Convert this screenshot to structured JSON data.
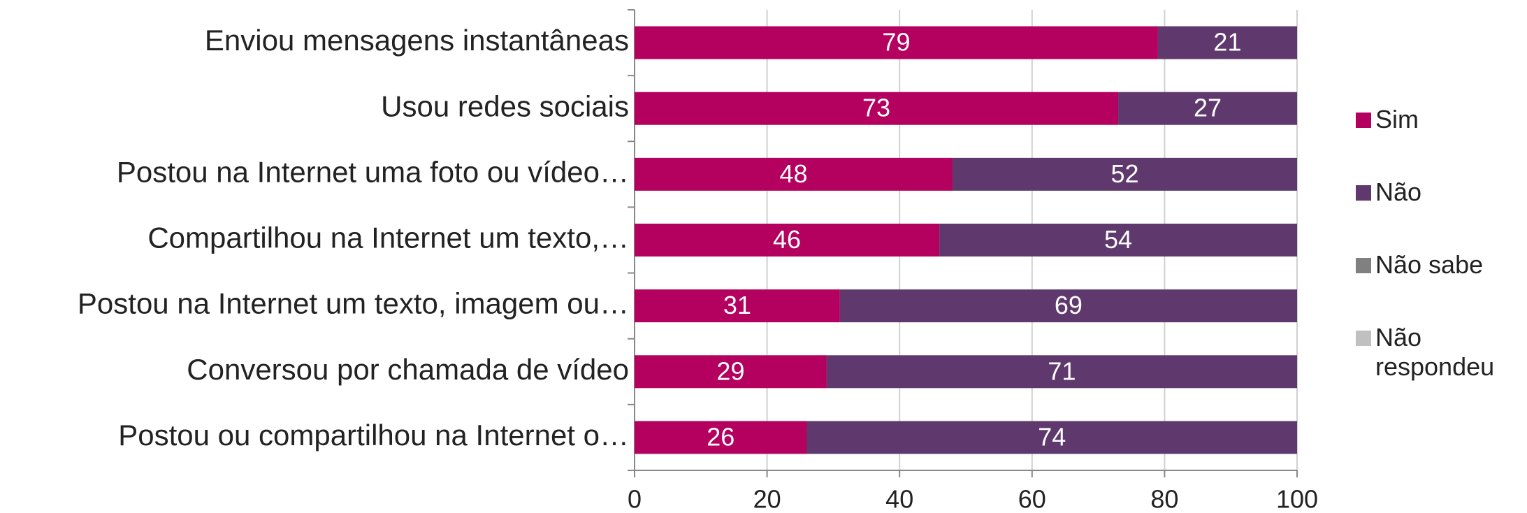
{
  "chart_data": {
    "type": "stacked_bar_horizontal",
    "categories": [
      "Enviou mensagens instantâneas",
      "Usou redes sociais",
      "Postou na Internet uma foto ou vídeo…",
      "Compartilhou na Internet um texto,…",
      "Postou na Internet um texto, imagem ou…",
      "Conversou por chamada de vídeo",
      "Postou ou compartilhou na Internet o…"
    ],
    "series": [
      {
        "name": "Sim",
        "color": "#b4005e",
        "values": [
          79,
          73,
          48,
          46,
          31,
          29,
          26
        ]
      },
      {
        "name": "Não",
        "color": "#5f396d",
        "values": [
          21,
          27,
          52,
          54,
          69,
          71,
          74
        ]
      },
      {
        "name": "Não sabe",
        "color": "#808080",
        "values": [
          0,
          0,
          0,
          0,
          0,
          0,
          0
        ]
      },
      {
        "name": "Não respondeu",
        "color": "#c0c0c0",
        "values": [
          0,
          0,
          0,
          0,
          0,
          0,
          0
        ]
      }
    ],
    "xlim": [
      0,
      100
    ],
    "xticks": [
      0,
      20,
      40,
      60,
      80,
      100
    ],
    "grid": true,
    "legend": "right"
  }
}
